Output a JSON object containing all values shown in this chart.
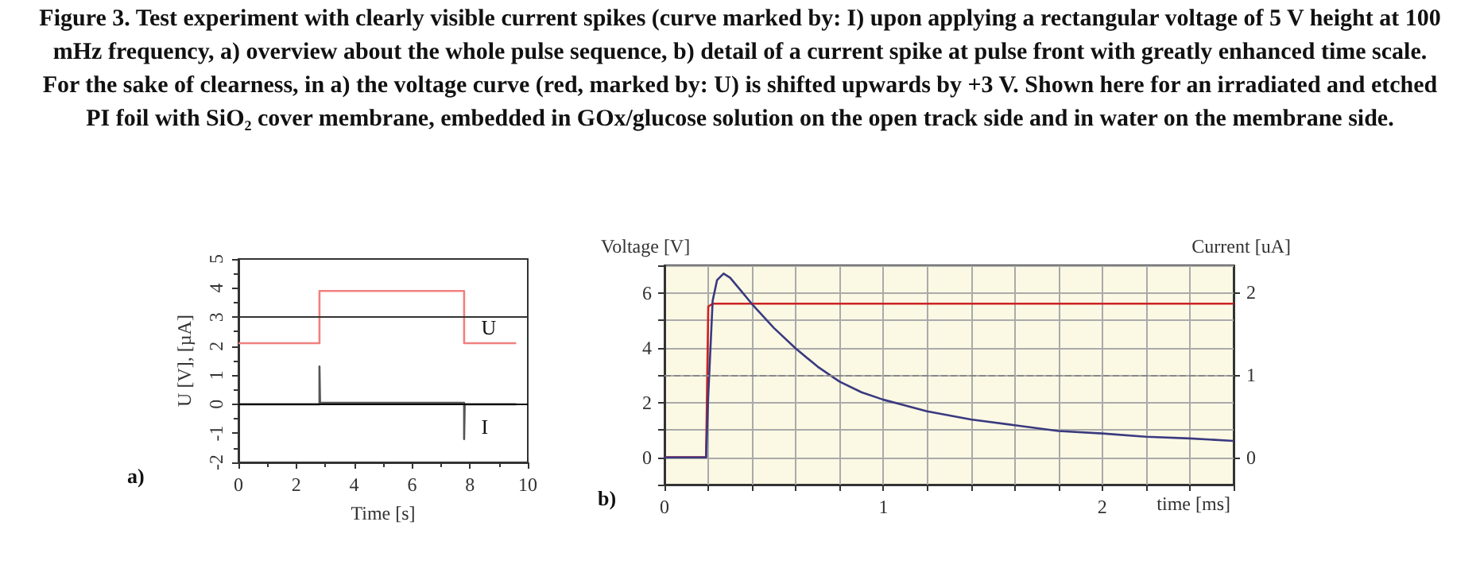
{
  "chart_data": [
    {
      "type": "line",
      "title": "Figure 3. Test experiment with clearly visible current spikes (curve marked by: I) upon applying a rectangular voltage of 5 V height at 100 mHz frequency, a) overview about the whole pulse sequence, b) detail of a current spike at pulse front with greatly enhanced time scale. For the sake of clearness, in a) the voltage curve (red, marked by: U) is shifted upwards by +3 V. Shown here for an irradiated and etched PI foil with SiO₂ cover membrane, embedded in GOx/glucose solution on the open track side and in water on the membrane side.",
      "xlabel": "Time [s]",
      "ylabel": "U [V], [µA]",
      "xlim": [
        0,
        10
      ],
      "ylim": [
        -2,
        5
      ],
      "xticks": [
        0,
        2,
        4,
        6,
        8,
        10
      ],
      "yticks": [
        -2,
        -1,
        0,
        1,
        2,
        3,
        4,
        5
      ],
      "grid": false,
      "marker": "none",
      "series": [
        {
          "name": "U",
          "color": "#f08080",
          "x": [
            0,
            2.8,
            2.8,
            7.8,
            7.8,
            9.6
          ],
          "values": [
            2.1,
            2.1,
            3.9,
            3.9,
            2.1,
            2.1
          ]
        },
        {
          "name": "I",
          "color": "#555555",
          "x": [
            0,
            2.8,
            2.8,
            2.82,
            7.8,
            7.8,
            7.82,
            9.6
          ],
          "values": [
            0,
            0,
            1.3,
            0.05,
            0.05,
            -1.2,
            0,
            0
          ]
        }
      ],
      "ref_lines": [
        {
          "axis": "y",
          "value": 3,
          "color": "#333333"
        },
        {
          "axis": "y",
          "value": 0,
          "color": "#000000"
        }
      ],
      "annotations": [
        "a)"
      ]
    },
    {
      "type": "line",
      "xlabel": "time [ms]",
      "ylabel": "Voltage [V]",
      "y2label": "Current [uA]",
      "xlim": [
        0,
        2.6
      ],
      "ylim": [
        -1,
        7
      ],
      "y2lim": [
        -0.33,
        2.33
      ],
      "grid": true,
      "marker": "none",
      "xticks": [
        0,
        {
          "value": 0.2,
          "label": null
        },
        {
          "value": 0.4,
          "label": null
        },
        {
          "value": 0.6,
          "label": null
        },
        {
          "value": 0.8,
          "label": null
        },
        1,
        {
          "value": 1.2,
          "label": null
        },
        {
          "value": 1.4,
          "label": null
        },
        {
          "value": 1.6,
          "label": null
        },
        {
          "value": 1.8,
          "label": null
        },
        2,
        {
          "value": 2.2,
          "label": null
        },
        {
          "value": 2.4,
          "label": null
        },
        {
          "value": 2.6,
          "label": null
        }
      ],
      "yticks": [
        {
          "value": -1,
          "label": null
        },
        0,
        {
          "value": 1,
          "label": null
        },
        2,
        {
          "value": 3,
          "label": null
        },
        4,
        {
          "value": 5,
          "label": null
        },
        6,
        {
          "value": 7,
          "label": null
        }
      ],
      "y2ticks": [
        0,
        1,
        2
      ],
      "series": [
        {
          "color": "#cc2222",
          "x": [
            0,
            0.19,
            0.2,
            0.22,
            2.6
          ],
          "values": [
            0,
            0,
            5.5,
            5.6,
            5.6
          ]
        },
        {
          "color": "#3a3a80",
          "axis": "y2",
          "x": [
            0,
            0.19,
            0.2,
            0.22,
            0.24,
            0.27,
            0.3,
            0.35,
            0.4,
            0.5,
            0.6,
            0.7,
            0.8,
            0.9,
            1.0,
            1.2,
            1.4,
            1.6,
            1.8,
            2.0,
            2.2,
            2.4,
            2.6
          ],
          "values": [
            0,
            0,
            0.75,
            1.9,
            2.15,
            2.23,
            2.18,
            2.02,
            1.86,
            1.57,
            1.32,
            1.1,
            0.92,
            0.79,
            0.7,
            0.56,
            0.46,
            0.39,
            0.32,
            0.29,
            0.25,
            0.23,
            0.2
          ]
        }
      ],
      "ref_lines": [
        {
          "axis": "y",
          "value": 3,
          "color": "#888888",
          "line_style": "dashed"
        }
      ],
      "annotations": [
        "b)"
      ]
    }
  ]
}
